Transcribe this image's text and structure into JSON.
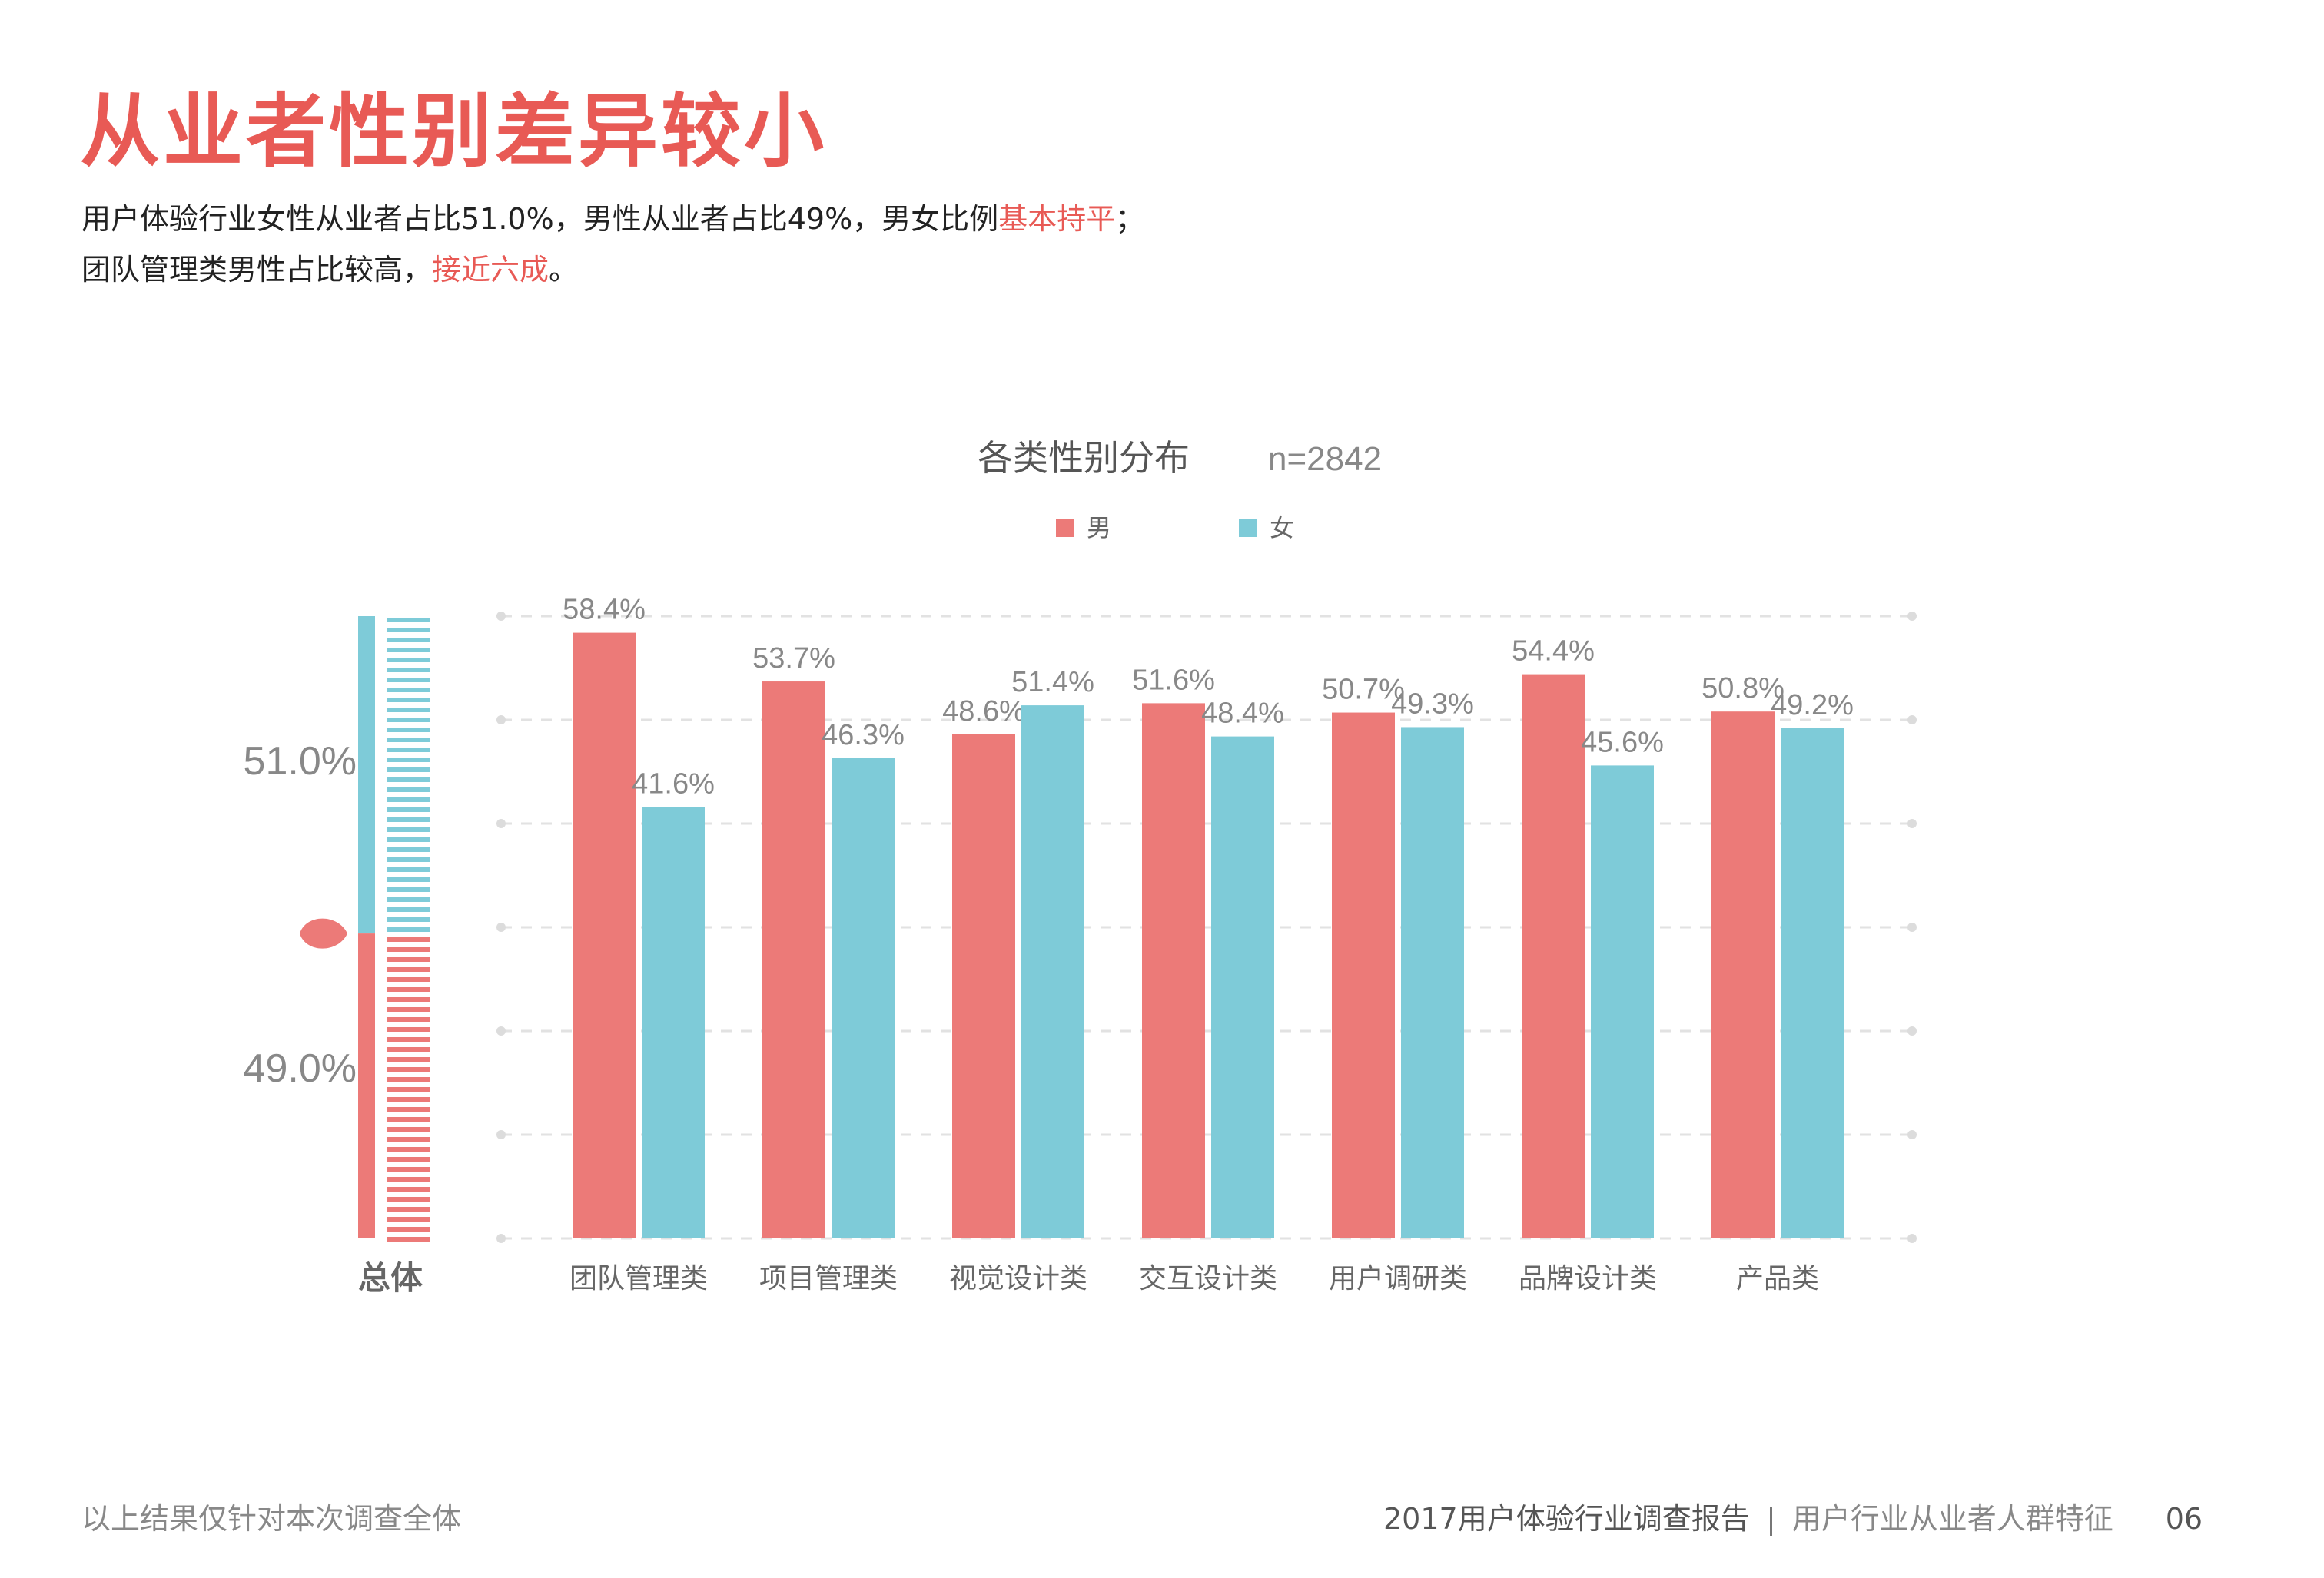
{
  "page": {
    "title": "从业者性别差异较小",
    "desc_line1": {
      "a": "用户体验行业女性从业者占比51.0%，男性从业者占比49%，男女比例",
      "highlight": "基本持平",
      "b": "；"
    },
    "desc_line2": {
      "a": "团队管理类男性占比较高，",
      "highlight": "接近六成",
      "b": "。"
    }
  },
  "chart_data": {
    "type": "bar",
    "title": "各类性别分布",
    "sample": "n=2842",
    "categories": [
      "团队管理类",
      "项目管理类",
      "视觉设计类",
      "交互设计类",
      "用户调研类",
      "品牌设计类",
      "产品类"
    ],
    "series": [
      {
        "name": "男",
        "color": "#ec7a78",
        "values": [
          58.4,
          53.7,
          48.6,
          51.6,
          50.7,
          54.4,
          50.8
        ]
      },
      {
        "name": "女",
        "color": "#7ecbd8",
        "values": [
          41.6,
          46.3,
          51.4,
          48.4,
          49.3,
          45.6,
          49.2
        ]
      }
    ],
    "value_suffix": "%",
    "ylim": [
      0,
      60
    ],
    "grid": true,
    "legend_position": "top",
    "overall": {
      "label": "总体",
      "female_label": "51.0%",
      "male_label": "49.0%",
      "female_value": 51.0,
      "male_value": 49.0
    }
  },
  "footer": {
    "left": "以上结果仅针对本次调查全体",
    "report": "2017用户体验行业调查报告",
    "section": "用户行业从业者人群特征",
    "page_no": "06"
  }
}
